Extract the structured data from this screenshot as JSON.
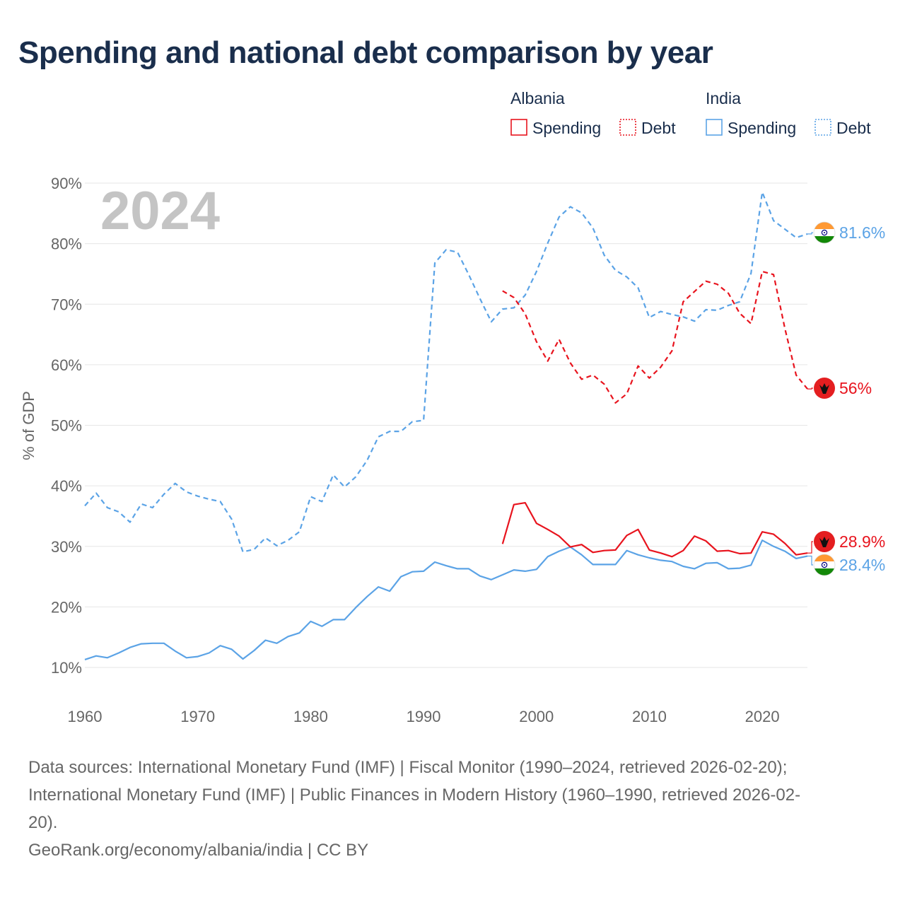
{
  "title": "Spending and national debt comparison by year",
  "year_watermark": "2024",
  "legend": {
    "groups": [
      {
        "country": "Albania",
        "items": [
          {
            "label": "Spending",
            "style": "solid"
          },
          {
            "label": "Debt",
            "style": "dotted"
          }
        ],
        "color": "#e8141e"
      },
      {
        "country": "India",
        "items": [
          {
            "label": "Spending",
            "style": "solid"
          },
          {
            "label": "Debt",
            "style": "dotted"
          }
        ],
        "color": "#5ba3e6"
      }
    ]
  },
  "sources": {
    "line1": "Data sources: International Monetary Fund (IMF) | Fiscal Monitor (1990–2024, retrieved 2026-02-20);",
    "line2": "International Monetary Fund (IMF) | Public Finances in Modern History (1960–1990, retrieved 2026-02-",
    "line3": "20).",
    "credit": "GeoRank.org/economy/albania/india | CC BY"
  },
  "chart_data": {
    "type": "line",
    "ylabel": "% of GDP",
    "xlabel": "",
    "xlim": [
      1960,
      2024
    ],
    "ylim": [
      10,
      90
    ],
    "x_ticks": [
      1960,
      1970,
      1980,
      1990,
      2000,
      2010,
      2020
    ],
    "y_ticks": [
      10,
      20,
      30,
      40,
      50,
      60,
      70,
      80,
      90
    ],
    "y_tick_labels": [
      "10%",
      "20%",
      "30%",
      "40%",
      "50%",
      "60%",
      "70%",
      "80%",
      "90%"
    ],
    "grid": true,
    "series": [
      {
        "name": "India Debt",
        "country": "India",
        "metric": "Debt",
        "color": "#5ba3e6",
        "dash": "dashed",
        "start": 1960,
        "values": [
          36.7,
          38.8,
          36.4,
          35.7,
          34.0,
          37.0,
          36.4,
          38.6,
          40.4,
          39.0,
          38.3,
          37.8,
          37.4,
          34.5,
          29.1,
          29.5,
          31.4,
          30.1,
          31.0,
          32.4,
          38.2,
          37.4,
          41.8,
          39.8,
          41.5,
          44.2,
          48.1,
          49.0,
          49.0,
          50.6,
          50.8,
          76.8,
          79.0,
          78.6,
          74.9,
          70.9,
          67.1,
          69.2,
          69.4,
          71.5,
          75.4,
          80.1,
          84.4,
          86.1,
          85.1,
          82.6,
          78.1,
          75.6,
          74.5,
          72.7,
          67.8,
          68.8,
          68.3,
          67.9,
          67.2,
          69.1,
          69.0,
          69.8,
          70.4,
          75.1,
          88.5,
          83.8,
          82.4,
          81.0,
          81.6
        ]
      },
      {
        "name": "India Spending",
        "country": "India",
        "metric": "Spending",
        "color": "#5ba3e6",
        "dash": "solid",
        "start": 1960,
        "values": [
          11.3,
          11.9,
          11.6,
          12.4,
          13.3,
          13.9,
          14.0,
          14.0,
          12.7,
          11.6,
          11.8,
          12.4,
          13.6,
          13.0,
          11.4,
          12.8,
          14.5,
          14.0,
          15.1,
          15.7,
          17.6,
          16.8,
          17.9,
          17.9,
          19.9,
          21.7,
          23.3,
          22.6,
          25.0,
          25.8,
          25.9,
          27.4,
          26.8,
          26.3,
          26.3,
          25.1,
          24.5,
          25.3,
          26.1,
          25.9,
          26.2,
          28.3,
          29.2,
          29.9,
          28.6,
          27.0,
          27.0,
          27.0,
          29.3,
          28.6,
          28.1,
          27.7,
          27.5,
          26.7,
          26.3,
          27.2,
          27.3,
          26.3,
          26.4,
          26.9,
          31.0,
          30.0,
          29.2,
          28.0,
          28.4
        ]
      },
      {
        "name": "Albania Debt",
        "country": "Albania",
        "metric": "Debt",
        "color": "#e8141e",
        "dash": "dashed",
        "start": 1997,
        "values": [
          72.2,
          71.1,
          68.4,
          63.8,
          60.6,
          64.2,
          60.3,
          57.6,
          58.3,
          56.8,
          53.7,
          55.2,
          59.8,
          57.8,
          59.6,
          62.3,
          70.4,
          72.1,
          73.8,
          73.3,
          71.8,
          68.5,
          66.8,
          75.4,
          74.9,
          66.0,
          58.3,
          56.0
        ]
      },
      {
        "name": "Albania Spending",
        "country": "Albania",
        "metric": "Spending",
        "color": "#e8141e",
        "dash": "solid",
        "start": 1997,
        "values": [
          30.4,
          36.9,
          37.2,
          33.8,
          32.8,
          31.7,
          29.9,
          30.3,
          29.0,
          29.3,
          29.4,
          31.8,
          32.8,
          29.4,
          28.9,
          28.3,
          29.3,
          31.7,
          30.9,
          29.2,
          29.3,
          28.8,
          28.9,
          32.4,
          32.0,
          30.5,
          28.6,
          28.9
        ]
      }
    ],
    "end_labels": [
      {
        "country": "India",
        "metric": "Debt",
        "text": "81.6%",
        "color": "#5ba3e6",
        "value": 81.6
      },
      {
        "country": "Albania",
        "metric": "Debt",
        "text": "56%",
        "color": "#e8141e",
        "value": 56
      },
      {
        "country": "Albania",
        "metric": "Spending",
        "text": "28.9%",
        "color": "#e8141e",
        "value": 28.9
      },
      {
        "country": "India",
        "metric": "Spending",
        "text": "28.4%",
        "color": "#5ba3e6",
        "value": 28.4
      }
    ]
  }
}
